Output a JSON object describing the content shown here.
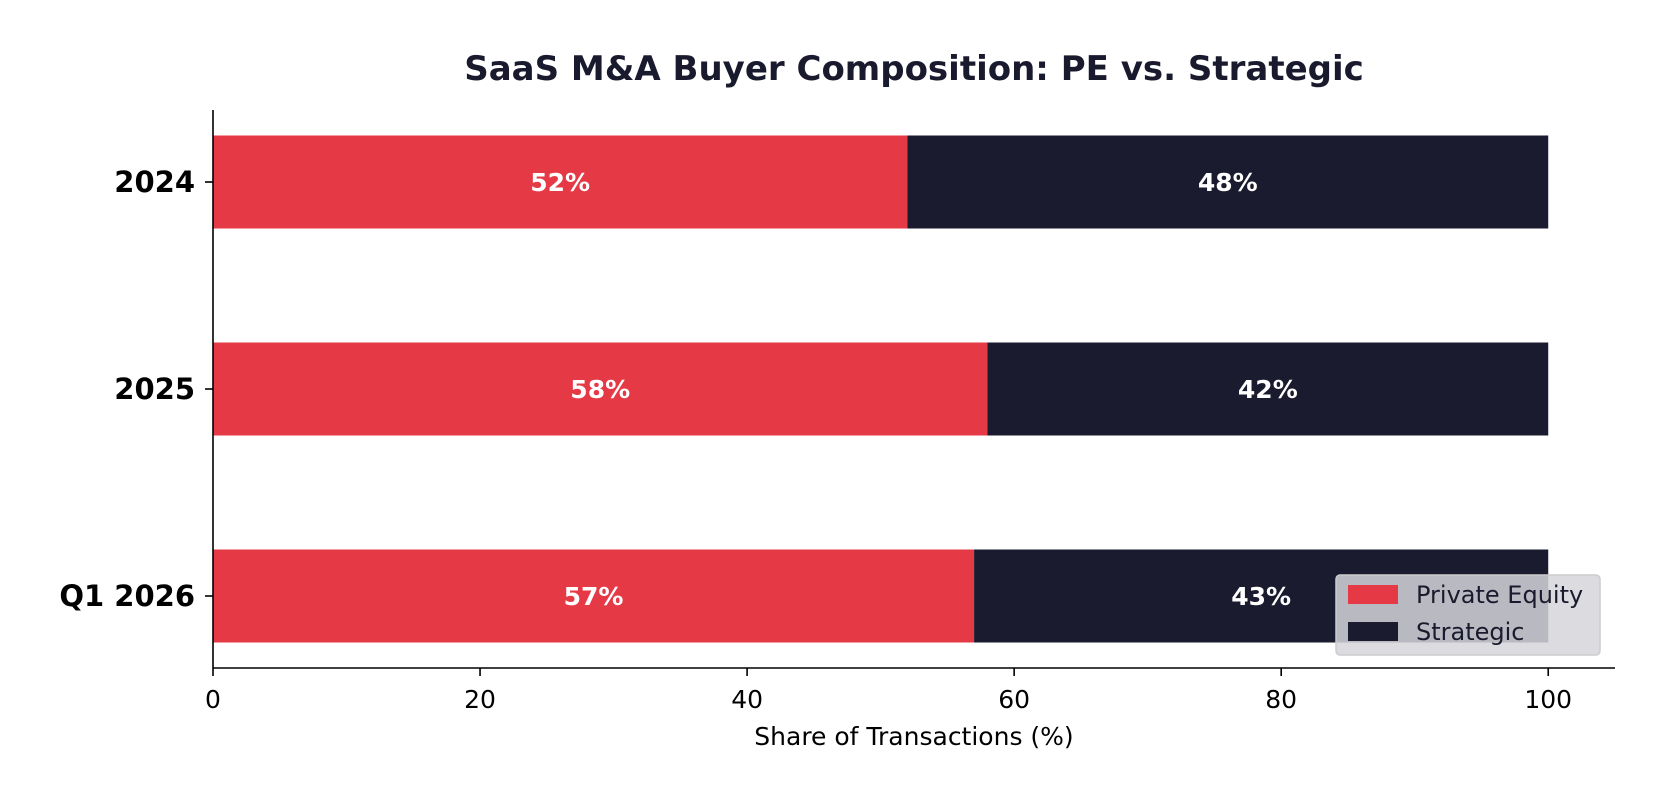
{
  "colors": {
    "private_equity": "#e63946",
    "strategic": "#1b1b2f",
    "title": "#1a1a2e",
    "axis": "#000000",
    "legend_bg": "#d5d5da",
    "legend_border": "#cccccc"
  },
  "chart_data": {
    "type": "bar",
    "orientation": "horizontal",
    "stacked": true,
    "title": "SaaS M&A Buyer Composition: PE vs. Strategic",
    "xlabel": "Share of Transactions (%)",
    "ylabel": "",
    "categories": [
      "2024",
      "2025",
      "Q1 2026"
    ],
    "series": [
      {
        "name": "Private Equity",
        "values": [
          52,
          58,
          57
        ],
        "labels": [
          "52%",
          "58%",
          "57%"
        ]
      },
      {
        "name": "Strategic",
        "values": [
          48,
          42,
          43
        ],
        "labels": [
          "48%",
          "42%",
          "43%"
        ]
      }
    ],
    "xlim": [
      0,
      105
    ],
    "xticks": [
      0,
      20,
      40,
      60,
      80,
      100
    ],
    "xtick_labels": [
      "0",
      "20",
      "40",
      "60",
      "80",
      "100"
    ],
    "grid": false,
    "legend": "lower-right"
  }
}
